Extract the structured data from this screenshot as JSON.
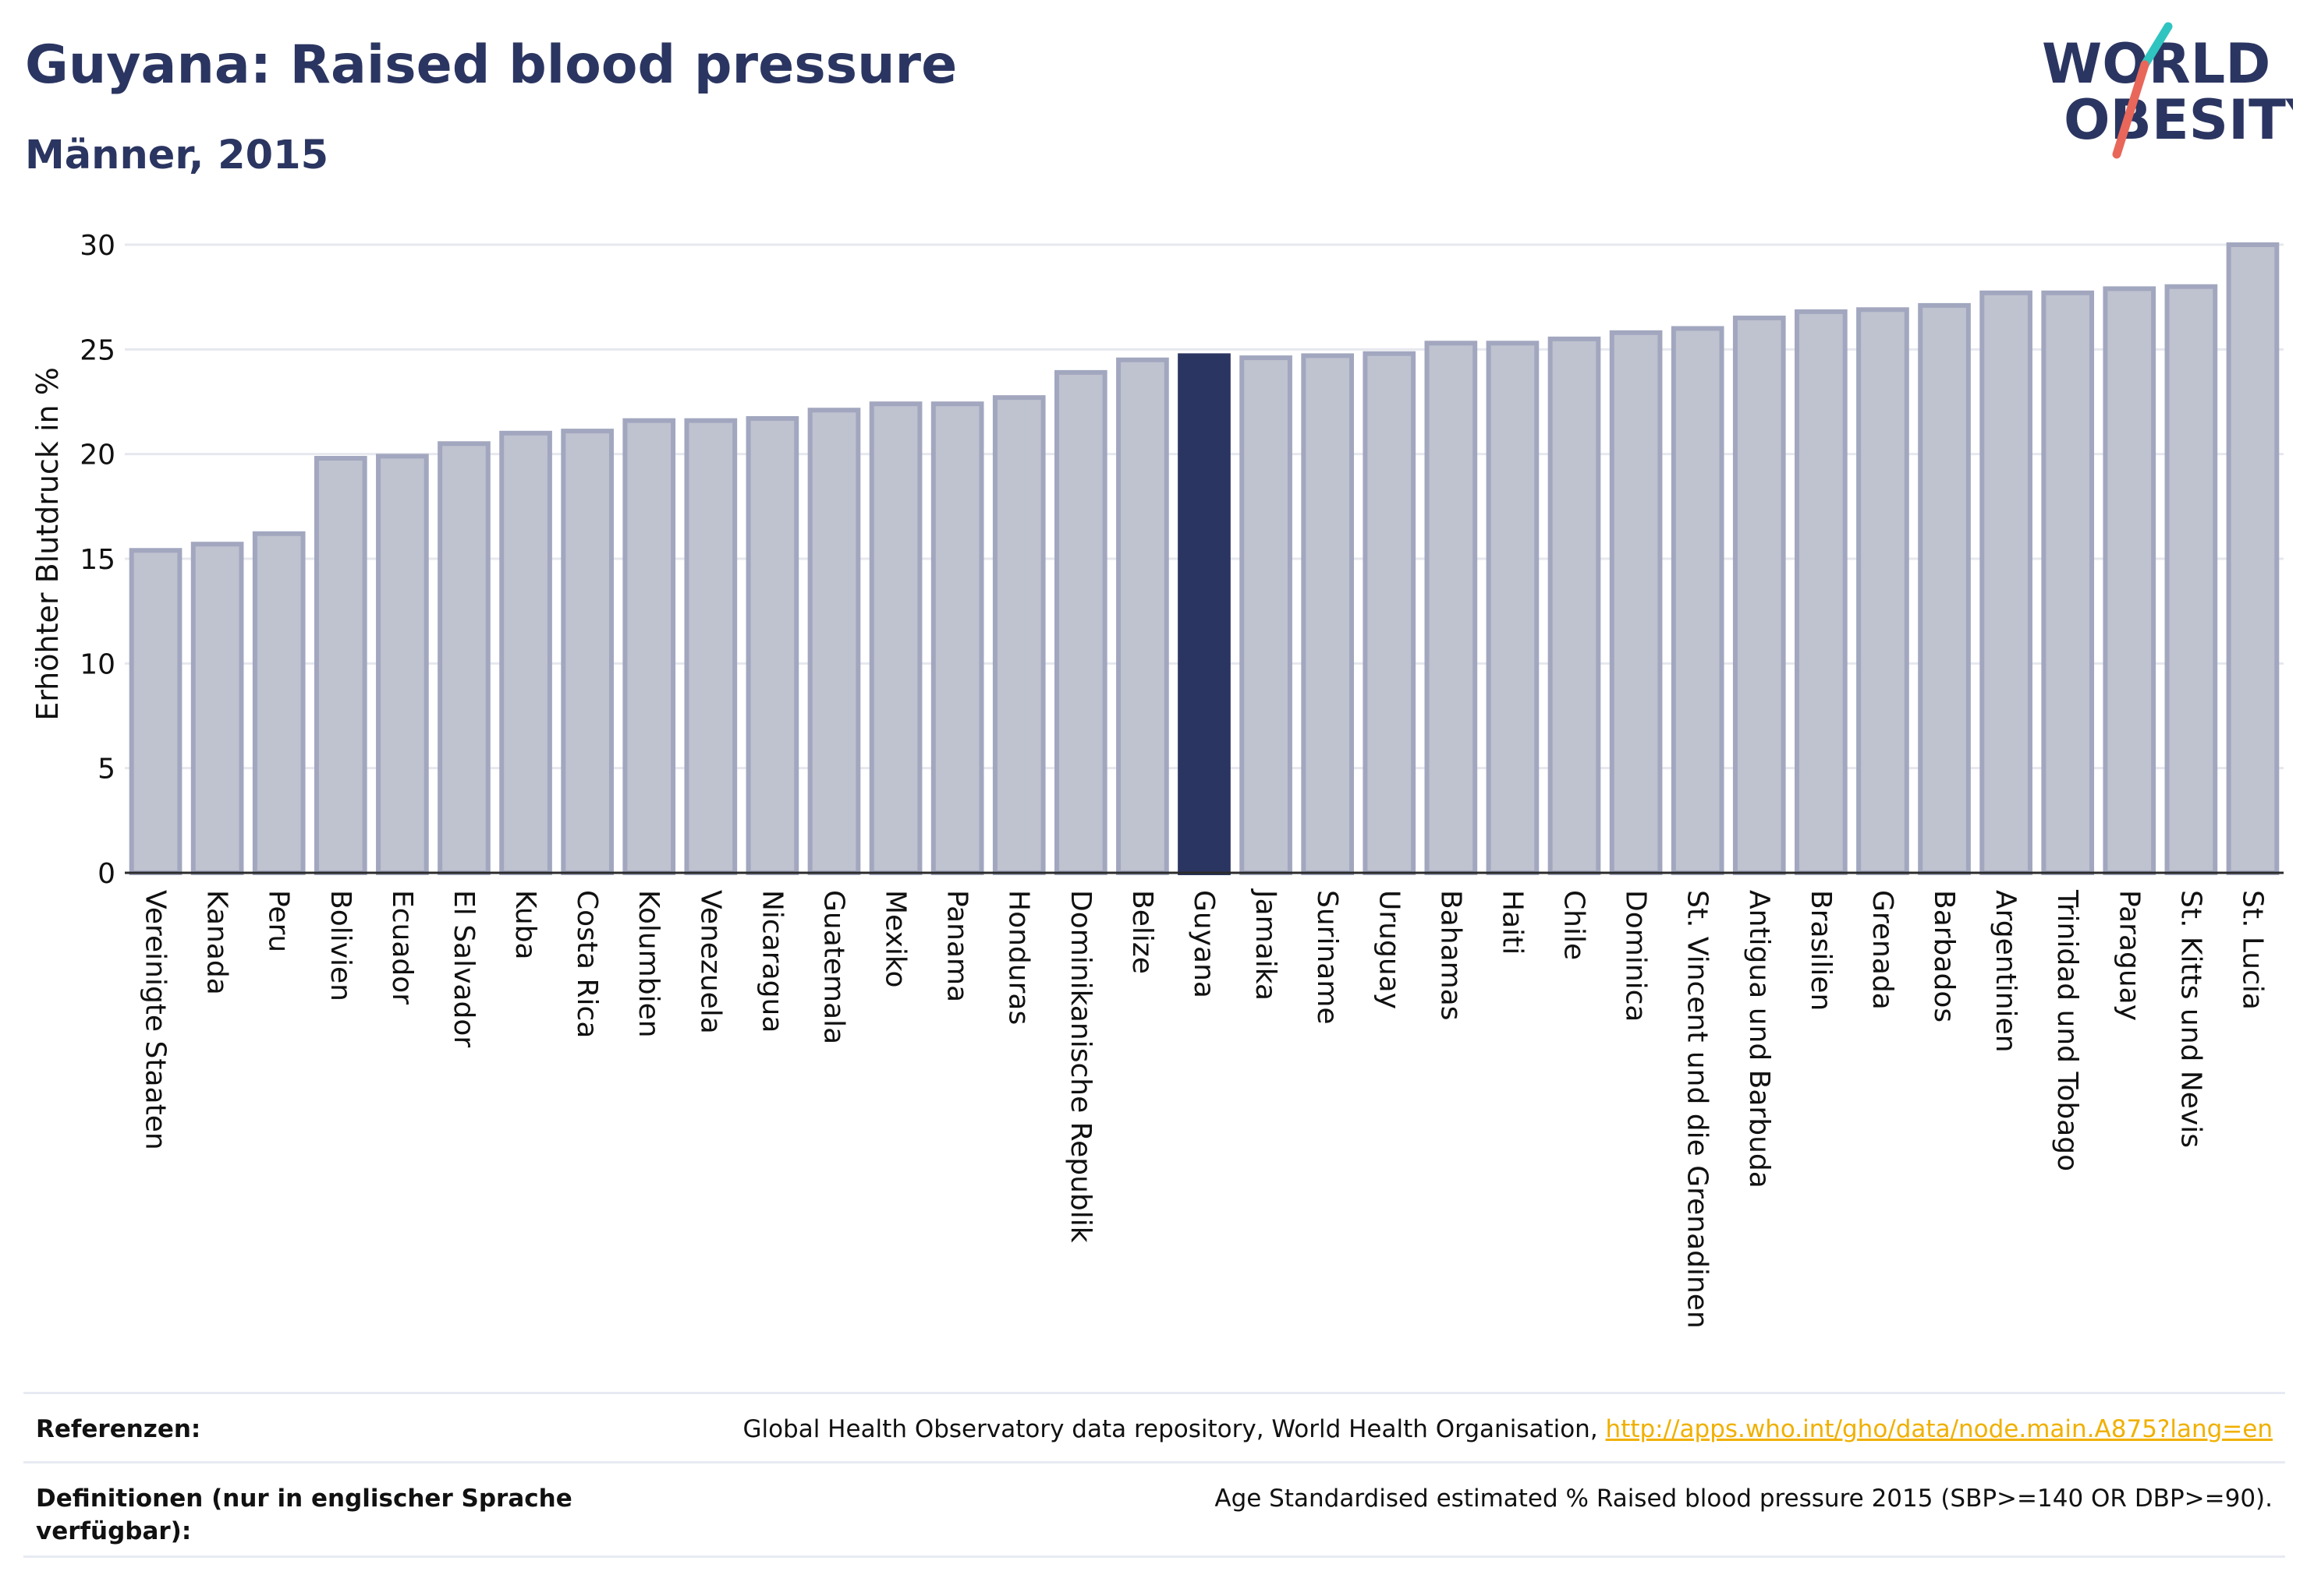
{
  "header": {
    "title": "Guyana: Raised blood pressure",
    "subtitle": "Männer, 2015"
  },
  "logo": {
    "line1": "WORLD",
    "line2": "OBESITY",
    "colors": {
      "text": "#2b3561",
      "slash_teal": "#2fc4c0",
      "slash_red": "#e8675a"
    }
  },
  "chart_data": {
    "type": "bar",
    "title": "Guyana: Raised blood pressure",
    "subtitle": "Männer, 2015",
    "xlabel": "",
    "ylabel": "Erhöhter Blutdruck in %",
    "ylim": [
      0,
      30
    ],
    "yticks": [
      0,
      5,
      10,
      15,
      20,
      25,
      30
    ],
    "grid": true,
    "highlight": "Guyana",
    "colors": {
      "bar": "#bfc2cf",
      "bar_border": "#a2a7bf",
      "highlight": "#2b3561"
    },
    "categories": [
      "Vereinigte Staaten",
      "Kanada",
      "Peru",
      "Bolivien",
      "Ecuador",
      "El Salvador",
      "Kuba",
      "Costa Rica",
      "Kolumbien",
      "Venezuela",
      "Nicaragua",
      "Guatemala",
      "Mexiko",
      "Panama",
      "Honduras",
      "Dominikanische Republik",
      "Belize",
      "Guyana",
      "Jamaika",
      "Suriname",
      "Uruguay",
      "Bahamas",
      "Haiti",
      "Chile",
      "Dominica",
      "St. Vincent und die Grenadinen",
      "Antigua und Barbuda",
      "Brasilien",
      "Grenada",
      "Barbados",
      "Argentinien",
      "Trinidad und Tobago",
      "Paraguay",
      "St. Kitts und Nevis",
      "St. Lucia"
    ],
    "values": [
      15.4,
      15.7,
      16.2,
      19.8,
      19.9,
      20.5,
      21.0,
      21.1,
      21.6,
      21.6,
      21.7,
      22.1,
      22.4,
      22.4,
      22.7,
      23.9,
      24.5,
      24.7,
      24.6,
      24.7,
      24.8,
      25.3,
      25.3,
      25.5,
      25.8,
      26.0,
      26.5,
      26.8,
      26.9,
      27.1,
      27.7,
      27.7,
      27.9,
      28.0,
      30.0
    ]
  },
  "footer": {
    "ref_label": "Referenzen:",
    "ref_text": "Global Health Observatory data repository, World Health Organisation, ",
    "ref_link": "http://apps.who.int/gho/data/node.main.A875?lang=en",
    "def_label": "Definitionen (nur in englischer Sprache verfügbar):",
    "def_text": "Age Standardised estimated % Raised blood pressure 2015 (SBP>=140 OR DBP>=90)."
  }
}
